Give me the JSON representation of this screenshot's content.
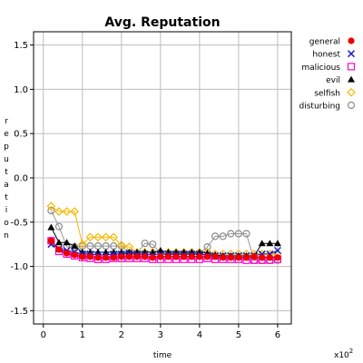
{
  "chart_data": {
    "type": "line",
    "title": "Avg. Reputation",
    "xlabel": "time",
    "ylabel": "reputation",
    "x_multiplier_label": "x10",
    "x_multiplier_exp": "2",
    "xlim": [
      -0.25,
      6.35
    ],
    "ylim": [
      -1.65,
      1.65
    ],
    "xticks": [
      0,
      1,
      2,
      3,
      4,
      5,
      6
    ],
    "xtick_labels": [
      "0",
      "1",
      "2",
      "3",
      "4",
      "5",
      "6"
    ],
    "yticks": [
      -1.5,
      -1.0,
      -0.5,
      0.0,
      0.5,
      1.0,
      1.5
    ],
    "ytick_labels": [
      "-1.5",
      "-1.0",
      "-0.5",
      "0.0",
      "0.5",
      "1.0",
      "1.5"
    ],
    "grid": true,
    "legend_position": "right",
    "x": [
      0.2,
      0.4,
      0.6,
      0.8,
      1.0,
      1.2,
      1.4,
      1.6,
      1.8,
      2.0,
      2.2,
      2.4,
      2.6,
      2.8,
      3.0,
      3.2,
      3.4,
      3.6,
      3.8,
      4.0,
      4.2,
      4.4,
      4.6,
      4.8,
      5.0,
      5.2,
      5.4,
      5.6,
      5.8,
      6.0
    ],
    "series": [
      {
        "name": "general",
        "marker": "dot",
        "color": "#ee0000",
        "line_color": "#cc0000",
        "values": [
          -0.71,
          -0.81,
          -0.85,
          -0.87,
          -0.89,
          -0.89,
          -0.9,
          -0.9,
          -0.9,
          -0.89,
          -0.89,
          -0.89,
          -0.89,
          -0.9,
          -0.89,
          -0.89,
          -0.89,
          -0.89,
          -0.89,
          -0.89,
          -0.89,
          -0.89,
          -0.9,
          -0.9,
          -0.9,
          -0.9,
          -0.89,
          -0.9,
          -0.9,
          -0.9
        ]
      },
      {
        "name": "honest",
        "marker": "x",
        "color": "#1f1fbf",
        "line_color": "#1f1fbf",
        "values": [
          -0.75,
          -0.8,
          -0.82,
          -0.84,
          -0.86,
          -0.86,
          -0.87,
          -0.87,
          -0.86,
          -0.86,
          -0.85,
          -0.86,
          -0.86,
          -0.87,
          -0.86,
          -0.86,
          -0.86,
          -0.86,
          -0.86,
          -0.86,
          -0.87,
          -0.88,
          -0.88,
          -0.88,
          -0.88,
          -0.88,
          -0.88,
          -0.86,
          -0.86,
          -0.82
        ]
      },
      {
        "name": "malicious",
        "marker": "square",
        "color": "#ff00cc",
        "line_color": "#cc44aa",
        "values": [
          -0.71,
          -0.83,
          -0.86,
          -0.88,
          -0.9,
          -0.91,
          -0.92,
          -0.92,
          -0.91,
          -0.91,
          -0.91,
          -0.91,
          -0.91,
          -0.92,
          -0.92,
          -0.92,
          -0.92,
          -0.92,
          -0.92,
          -0.92,
          -0.91,
          -0.92,
          -0.92,
          -0.92,
          -0.92,
          -0.93,
          -0.93,
          -0.93,
          -0.93,
          -0.92
        ]
      },
      {
        "name": "evil",
        "marker": "triangle",
        "color": "#000000",
        "line_color": "#000000",
        "values": [
          -0.56,
          -0.73,
          -0.73,
          -0.77,
          -0.84,
          -0.84,
          -0.84,
          -0.84,
          -0.84,
          -0.84,
          -0.84,
          -0.84,
          -0.84,
          -0.84,
          -0.82,
          -0.84,
          -0.84,
          -0.84,
          -0.84,
          -0.84,
          -0.85,
          -0.87,
          -0.88,
          -0.88,
          -0.88,
          -0.88,
          -0.88,
          -0.74,
          -0.74,
          -0.74
        ]
      },
      {
        "name": "selfish",
        "marker": "diamond",
        "color": "#f5b800",
        "line_color": "#f5b800",
        "values": [
          -0.32,
          -0.38,
          -0.38,
          -0.38,
          -0.75,
          -0.67,
          -0.67,
          -0.67,
          -0.67,
          -0.76,
          -0.78,
          -0.84,
          -0.84,
          -0.84,
          -0.84,
          -0.84,
          -0.84,
          -0.84,
          -0.84,
          -0.84,
          -0.84,
          -0.86,
          -0.86,
          -0.86,
          -0.86,
          -0.86,
          -0.86,
          -0.86,
          -0.86,
          -0.86
        ]
      },
      {
        "name": "disturbing",
        "marker": "circle",
        "color": "#8a8a8a",
        "line_color": "#999999",
        "values": [
          -0.37,
          -0.55,
          -0.78,
          -0.78,
          -0.77,
          -0.77,
          -0.77,
          -0.77,
          -0.77,
          -0.77,
          -0.85,
          -0.85,
          -0.74,
          -0.75,
          -0.85,
          -0.85,
          -0.85,
          -0.85,
          -0.85,
          -0.85,
          -0.78,
          -0.66,
          -0.66,
          -0.63,
          -0.63,
          -0.63,
          -0.93,
          -0.93,
          -0.93,
          -0.93
        ]
      }
    ]
  }
}
